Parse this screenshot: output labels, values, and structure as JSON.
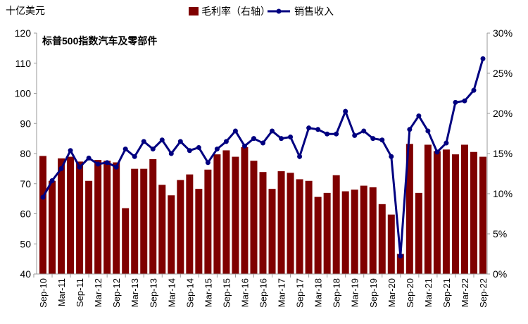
{
  "chart_data": {
    "type": "bar+line",
    "title": "标普500指数汽车及零部件",
    "ylabel_left": "十亿美元",
    "ylim_left": [
      40,
      120
    ],
    "yticks_left": [
      "40",
      "50",
      "60",
      "70",
      "80",
      "90",
      "100",
      "110",
      "120"
    ],
    "ylim_right": [
      0,
      30
    ],
    "yticks_right": [
      "0%",
      "5%",
      "10%",
      "15%",
      "20%",
      "25%",
      "30%"
    ],
    "legend": {
      "bar": "毛利率（右轴）",
      "line": "销售收入",
      "placement": "top"
    },
    "x_tick_labels": [
      "Sep-10",
      "Mar-11",
      "Sep-11",
      "Mar-12",
      "Sep-12",
      "Mar-13",
      "Sep-13",
      "Mar-14",
      "Sep-14",
      "Mar-15",
      "Sep-15",
      "Mar-16",
      "Sep-16",
      "Mar-17",
      "Sep-17",
      "Mar-18",
      "Sep-18",
      "Mar-19",
      "Sep-19",
      "Mar-20",
      "Sep-20",
      "Mar-21",
      "Sep-21",
      "Mar-22",
      "Sep-22"
    ],
    "series": [
      {
        "name": "毛利率（右轴）",
        "type": "bar",
        "axis": "right",
        "unit": "%",
        "color": "#7f0000",
        "values": [
          14.7,
          11.6,
          14.4,
          14.6,
          14.0,
          11.6,
          14.2,
          14.1,
          13.9,
          8.2,
          13.1,
          13.1,
          14.3,
          11.1,
          9.8,
          11.7,
          12.4,
          10.6,
          13.0,
          14.9,
          15.4,
          14.6,
          15.8,
          14.1,
          12.7,
          10.6,
          12.8,
          12.6,
          11.8,
          11.6,
          9.6,
          10.1,
          12.3,
          10.3,
          10.5,
          11.0,
          10.8,
          8.7,
          7.4,
          2.5,
          16.2,
          10.1,
          16.1,
          15.3,
          15.5,
          14.9,
          16.1,
          15.2,
          14.6
        ]
      },
      {
        "name": "销售收入",
        "type": "line",
        "axis": "left",
        "unit": "十亿美元",
        "color": "#000080",
        "values": [
          65.5,
          71,
          75,
          81,
          75.5,
          78.5,
          76.5,
          77,
          75.5,
          81.5,
          79,
          84,
          81.5,
          84.5,
          80,
          84,
          81,
          82,
          77,
          81.5,
          84,
          87.5,
          82.5,
          85,
          83.5,
          87.5,
          85,
          85.5,
          79,
          88.5,
          88,
          86.5,
          86.5,
          94,
          86,
          87.5,
          85,
          84.5,
          79,
          46,
          88,
          92.5,
          87.5,
          80.5,
          83.5,
          97,
          97.5,
          101,
          111.5
        ]
      }
    ]
  }
}
